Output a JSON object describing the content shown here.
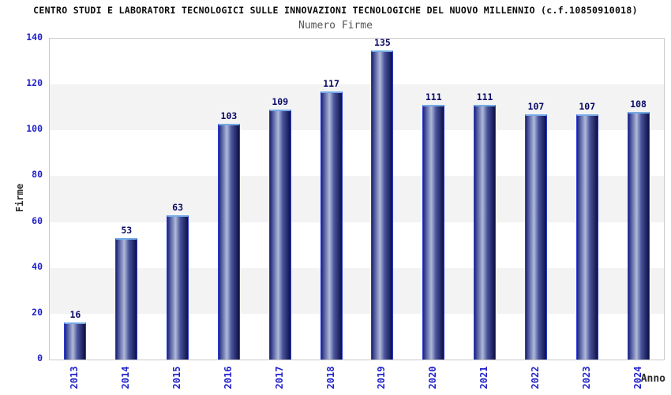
{
  "chart_data": {
    "type": "bar",
    "title": "CENTRO STUDI E LABORATORI TECNOLOGICI SULLE INNOVAZIONI TECNOLOGICHE DEL NUOVO MILLENNIO (c.f.10850910018)",
    "subtitle": "Numero Firme",
    "xlabel": "Anno",
    "ylabel": "Firme",
    "categories": [
      "2013",
      "2014",
      "2015",
      "2016",
      "2017",
      "2018",
      "2019",
      "2020",
      "2021",
      "2022",
      "2023",
      "2024"
    ],
    "values": [
      16,
      53,
      63,
      103,
      109,
      117,
      135,
      111,
      111,
      107,
      107,
      108
    ],
    "ylim": [
      0,
      140
    ],
    "yticks": [
      0,
      20,
      40,
      60,
      80,
      100,
      120,
      140
    ],
    "legend": "none",
    "grid": "alternating horizontal bands",
    "colors": {
      "axis_tick_blue": "#2222cc",
      "value_label_navy": "#0a0a66",
      "band_gray": "#f3f3f3",
      "plot_border": "#c9c9c9",
      "bar_edge_blue": "#2b3bd0",
      "bar_cap_blue": "#74abe6",
      "bar_dark": "#1d2470",
      "bar_mid": "#4a549c",
      "bar_light": "#b0bad9",
      "bar_darkest": "#0d1048",
      "title_color": "#0a0a0a",
      "subtitle_color": "#555555",
      "axis_title_color": "#2b2b2b"
    }
  }
}
